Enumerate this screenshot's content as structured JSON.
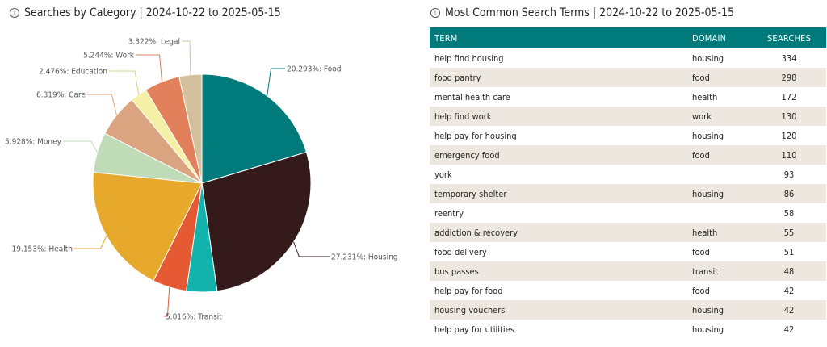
{
  "left_panel": {
    "info_icon": "info-icon",
    "title": "Searches by Category | 2024-10-22 to 2025-05-15"
  },
  "right_panel": {
    "info_icon": "info-icon",
    "title": "Most Common Search Terms | 2024-10-22 to 2025-05-15",
    "columns": [
      "TERM",
      "DOMAIN",
      "SEARCHES"
    ],
    "rows": [
      {
        "term": "help find housing",
        "domain": "housing",
        "searches": "334"
      },
      {
        "term": "food pantry",
        "domain": "food",
        "searches": "298"
      },
      {
        "term": "mental health care",
        "domain": "health",
        "searches": "172"
      },
      {
        "term": "help find work",
        "domain": "work",
        "searches": "130"
      },
      {
        "term": "help pay for housing",
        "domain": "housing",
        "searches": "120"
      },
      {
        "term": "emergency food",
        "domain": "food",
        "searches": "110"
      },
      {
        "term": "york",
        "domain": "",
        "searches": "93"
      },
      {
        "term": "temporary shelter",
        "domain": "housing",
        "searches": "86"
      },
      {
        "term": "reentry",
        "domain": "",
        "searches": "58"
      },
      {
        "term": "addiction & recovery",
        "domain": "health",
        "searches": "55"
      },
      {
        "term": "food delivery",
        "domain": "food",
        "searches": "51"
      },
      {
        "term": "bus passes",
        "domain": "transit",
        "searches": "48"
      },
      {
        "term": "help pay for food",
        "domain": "food",
        "searches": "42"
      },
      {
        "term": "housing vouchers",
        "domain": "housing",
        "searches": "42"
      },
      {
        "term": "help pay for utilities",
        "domain": "housing",
        "searches": "42"
      }
    ]
  },
  "chart_data": {
    "type": "pie",
    "slices": [
      {
        "name": "Food",
        "value": 20.293,
        "label": "20.293%: Food",
        "color": "#007a7a"
      },
      {
        "name": "Housing",
        "value": 27.231,
        "label": "27.231%: Housing",
        "color": "#341a1b"
      },
      {
        "name": "",
        "value": 4.5,
        "label": "",
        "color": "#12b3ac"
      },
      {
        "name": "Transit",
        "value": 5.016,
        "label": "5.016%: Transit",
        "color": "#e55a32"
      },
      {
        "name": "Health",
        "value": 19.153,
        "label": "19.153%: Health",
        "color": "#e6a92b"
      },
      {
        "name": "Money",
        "value": 5.928,
        "label": "5.928%: Money",
        "color": "#bfdbb8"
      },
      {
        "name": "Care",
        "value": 6.319,
        "label": "6.319%: Care",
        "color": "#d9a47f"
      },
      {
        "name": "Education",
        "value": 2.476,
        "label": "2.476%: Education",
        "color": "#f4f0a6"
      },
      {
        "name": "Work",
        "value": 5.244,
        "label": "5.244%: Work",
        "color": "#e1805a"
      },
      {
        "name": "Legal",
        "value": 3.322,
        "label": "3.322%: Legal",
        "color": "#d3c19d"
      }
    ]
  }
}
